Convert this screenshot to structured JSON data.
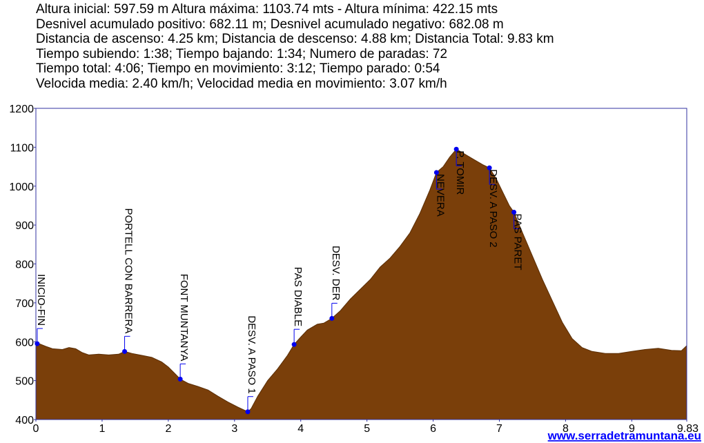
{
  "stats": [
    "Altura inicial: 597.59 m Altura máxima: 1103.74 mts - Altura mínima: 422.15 mts",
    "Desnivel acumulado positivo: 682.11 m; Desnivel acumulado negativo: 682.08 m",
    "Distancia de ascenso: 4.25 km; Distancia de descenso: 4.88 km; Distancia Total: 9.83 km",
    "Tiempo subiendo: 1:38; Tiempo bajando: 1:34; Numero de paradas: 72",
    "Tiempo total: 4:06; Tiempo en movimiento: 3:12; Tiempo parado: 0:54",
    "Velocida media: 2.40 km/h; Velocidad media en movimiento: 3.07 km/h"
  ],
  "site_link": "www.serradetramuntana.eu",
  "colors": {
    "fill": "#7a3f0a",
    "border": "#3030a0",
    "marker": "#0000ee",
    "link": "#0000ff"
  },
  "chart_data": {
    "type": "area",
    "xlim": [
      0,
      9.83
    ],
    "ylim": [
      400,
      1200
    ],
    "x_ticks": [
      "0",
      "1",
      "2",
      "3",
      "4",
      "5",
      "6",
      "7",
      "8",
      "9",
      "9.83"
    ],
    "y_ticks": [
      "1200",
      "1100",
      "1000",
      "900",
      "800",
      "700",
      "600",
      "500",
      "400"
    ],
    "profile": [
      [
        0,
        597
      ],
      [
        0.05,
        595
      ],
      [
        0.15,
        588
      ],
      [
        0.25,
        582
      ],
      [
        0.4,
        580
      ],
      [
        0.5,
        585
      ],
      [
        0.6,
        582
      ],
      [
        0.7,
        572
      ],
      [
        0.8,
        566
      ],
      [
        0.95,
        568
      ],
      [
        1.1,
        566
      ],
      [
        1.25,
        568
      ],
      [
        1.34,
        575
      ],
      [
        1.45,
        570
      ],
      [
        1.6,
        565
      ],
      [
        1.75,
        560
      ],
      [
        1.9,
        548
      ],
      [
        2.0,
        535
      ],
      [
        2.1,
        518
      ],
      [
        2.18,
        504
      ],
      [
        2.3,
        493
      ],
      [
        2.45,
        485
      ],
      [
        2.6,
        476
      ],
      [
        2.75,
        460
      ],
      [
        2.9,
        445
      ],
      [
        3.05,
        432
      ],
      [
        3.15,
        424
      ],
      [
        3.2,
        420
      ],
      [
        3.25,
        428
      ],
      [
        3.35,
        460
      ],
      [
        3.5,
        500
      ],
      [
        3.65,
        530
      ],
      [
        3.8,
        565
      ],
      [
        3.9,
        593
      ],
      [
        4.0,
        612
      ],
      [
        4.1,
        630
      ],
      [
        4.25,
        645
      ],
      [
        4.35,
        648
      ],
      [
        4.47,
        660
      ],
      [
        4.6,
        680
      ],
      [
        4.75,
        710
      ],
      [
        4.9,
        735
      ],
      [
        5.05,
        760
      ],
      [
        5.2,
        792
      ],
      [
        5.35,
        815
      ],
      [
        5.5,
        845
      ],
      [
        5.65,
        880
      ],
      [
        5.8,
        930
      ],
      [
        5.95,
        990
      ],
      [
        6.05,
        1035
      ],
      [
        6.15,
        1050
      ],
      [
        6.25,
        1075
      ],
      [
        6.35,
        1095
      ],
      [
        6.45,
        1085
      ],
      [
        6.6,
        1070
      ],
      [
        6.75,
        1055
      ],
      [
        6.85,
        1047
      ],
      [
        6.95,
        1020
      ],
      [
        7.05,
        985
      ],
      [
        7.15,
        950
      ],
      [
        7.22,
        933
      ],
      [
        7.35,
        880
      ],
      [
        7.5,
        820
      ],
      [
        7.65,
        760
      ],
      [
        7.8,
        705
      ],
      [
        7.95,
        650
      ],
      [
        8.1,
        608
      ],
      [
        8.25,
        585
      ],
      [
        8.4,
        575
      ],
      [
        8.6,
        570
      ],
      [
        8.8,
        570
      ],
      [
        9.0,
        575
      ],
      [
        9.2,
        580
      ],
      [
        9.4,
        583
      ],
      [
        9.6,
        578
      ],
      [
        9.75,
        577
      ],
      [
        9.83,
        590
      ]
    ],
    "waypoints": [
      {
        "name": "INICIO-FIN",
        "x": 0.02,
        "y": 595,
        "side": "above"
      },
      {
        "name": "PORTELL CON BARRERA",
        "x": 1.34,
        "y": 575,
        "side": "above"
      },
      {
        "name": "FONT MUNTANYA",
        "x": 2.18,
        "y": 504,
        "side": "above"
      },
      {
        "name": "DESV. A PASO 1",
        "x": 3.2,
        "y": 420,
        "side": "above"
      },
      {
        "name": "PAS DIABLE",
        "x": 3.9,
        "y": 593,
        "side": "above"
      },
      {
        "name": "DESV. DER",
        "x": 4.47,
        "y": 660,
        "side": "above"
      },
      {
        "name": "NEVERA",
        "x": 6.05,
        "y": 1035,
        "side": "below"
      },
      {
        "name": "P. TOMIR",
        "x": 6.35,
        "y": 1095,
        "side": "below"
      },
      {
        "name": "DESV. A PASO 2",
        "x": 6.85,
        "y": 1047,
        "side": "below"
      },
      {
        "name": "PAS PARET",
        "x": 7.22,
        "y": 933,
        "side": "below"
      }
    ]
  }
}
